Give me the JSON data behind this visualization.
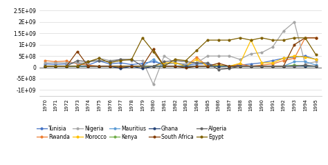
{
  "years": [
    1970,
    1971,
    1972,
    1973,
    1974,
    1975,
    1976,
    1977,
    1978,
    1979,
    1980,
    1981,
    1982,
    1983,
    1984,
    1985,
    1986,
    1987,
    1988,
    1989,
    1990,
    1991,
    1992,
    1993,
    1994,
    1995
  ],
  "series": {
    "Tunisia": [
      150000000.0,
      130000000.0,
      150000000.0,
      200000000.0,
      100000000.0,
      280000000.0,
      150000000.0,
      200000000.0,
      120000000.0,
      180000000.0,
      250000000.0,
      150000000.0,
      180000000.0,
      100000000.0,
      150000000.0,
      150000000.0,
      80000000.0,
      50000000.0,
      100000000.0,
      150000000.0,
      200000000.0,
      300000000.0,
      400000000.0,
      450000000.0,
      500000000.0,
      350000000.0
    ],
    "Rwanda": [
      300000000.0,
      250000000.0,
      280000000.0,
      150000000.0,
      100000000.0,
      50000000.0,
      50000000.0,
      -10000000.0,
      50000000.0,
      50000000.0,
      50000000.0,
      50000000.0,
      50000000.0,
      50000000.0,
      450000000.0,
      50000000.0,
      50000000.0,
      50000000.0,
      150000000.0,
      50000000.0,
      100000000.0,
      150000000.0,
      300000000.0,
      400000000.0,
      1300000000.0,
      1300000000.0
    ],
    "Nigeria": [
      200000000.0,
      200000000.0,
      200000000.0,
      200000000.0,
      200000000.0,
      400000000.0,
      300000000.0,
      350000000.0,
      300000000.0,
      300000000.0,
      -750000000.0,
      500000000.0,
      200000000.0,
      150000000.0,
      200000000.0,
      500000000.0,
      500000000.0,
      500000000.0,
      350000000.0,
      600000000.0,
      650000000.0,
      900000000.0,
      1600000000.0,
      2000000000.0,
      150000000.0,
      250000000.0
    ],
    "Morocco": [
      50000000.0,
      50000000.0,
      50000000.0,
      50000000.0,
      50000000.0,
      50000000.0,
      50000000.0,
      50000000.0,
      50000000.0,
      50000000.0,
      50000000.0,
      200000000.0,
      200000000.0,
      50000000.0,
      350000000.0,
      50000000.0,
      100000000.0,
      50000000.0,
      180000000.0,
      1200000000.0,
      200000000.0,
      200000000.0,
      400000000.0,
      500000000.0,
      450000000.0,
      350000000.0
    ],
    "Mauritius": [
      50000000.0,
      50000000.0,
      50000000.0,
      50000000.0,
      50000000.0,
      50000000.0,
      50000000.0,
      50000000.0,
      50000000.0,
      50000000.0,
      350000000.0,
      50000000.0,
      50000000.0,
      50000000.0,
      50000000.0,
      50000000.0,
      50000000.0,
      50000000.0,
      50000000.0,
      50000000.0,
      50000000.0,
      50000000.0,
      50000000.0,
      250000000.0,
      250000000.0,
      100000000.0
    ],
    "Kenya": [
      50000000.0,
      50000000.0,
      50000000.0,
      50000000.0,
      50000000.0,
      50000000.0,
      50000000.0,
      50000000.0,
      50000000.0,
      50000000.0,
      50000000.0,
      50000000.0,
      50000000.0,
      50000000.0,
      50000000.0,
      50000000.0,
      50000000.0,
      50000000.0,
      50000000.0,
      50000000.0,
      50000000.0,
      50000000.0,
      50000000.0,
      100000000.0,
      50000000.0,
      50000000.0
    ],
    "Ghana": [
      50000000.0,
      50000000.0,
      50000000.0,
      50000000.0,
      50000000.0,
      50000000.0,
      50000000.0,
      -50000000.0,
      50000000.0,
      -50000000.0,
      50000000.0,
      50000000.0,
      50000000.0,
      50000000.0,
      50000000.0,
      50000000.0,
      50000000.0,
      50000000.0,
      50000000.0,
      50000000.0,
      50000000.0,
      50000000.0,
      50000000.0,
      50000000.0,
      50000000.0,
      50000000.0
    ],
    "South Africa": [
      50000000.0,
      50000000.0,
      50000000.0,
      700000000.0,
      50000000.0,
      50000000.0,
      50000000.0,
      50000000.0,
      50000000.0,
      50000000.0,
      800000000.0,
      50000000.0,
      50000000.0,
      -20000000.0,
      50000000.0,
      50000000.0,
      180000000.0,
      50000000.0,
      50000000.0,
      50000000.0,
      50000000.0,
      50000000.0,
      50000000.0,
      1000000000.0,
      1300000000.0,
      1300000000.0
    ],
    "Algeria": [
      50000000.0,
      50000000.0,
      50000000.0,
      300000000.0,
      250000000.0,
      300000000.0,
      250000000.0,
      350000000.0,
      350000000.0,
      50000000.0,
      50000000.0,
      250000000.0,
      300000000.0,
      250000000.0,
      200000000.0,
      200000000.0,
      -100000000.0,
      -50000000.0,
      50000000.0,
      50000000.0,
      50000000.0,
      50000000.0,
      50000000.0,
      50000000.0,
      100000000.0,
      50000000.0
    ],
    "Egypt": [
      50000000.0,
      50000000.0,
      50000000.0,
      50000000.0,
      250000000.0,
      400000000.0,
      200000000.0,
      300000000.0,
      350000000.0,
      1300000000.0,
      700000000.0,
      50000000.0,
      350000000.0,
      300000000.0,
      750000000.0,
      1200000000.0,
      1200000000.0,
      1200000000.0,
      1300000000.0,
      1200000000.0,
      1300000000.0,
      1200000000.0,
      1200000000.0,
      1300000000.0,
      1300000000.0,
      550000000.0
    ]
  },
  "colors": {
    "Tunisia": "#4472c4",
    "Rwanda": "#ed7d31",
    "Nigeria": "#a5a5a5",
    "Morocco": "#ffc000",
    "Mauritius": "#5b9bd5",
    "Kenya": "#70ad47",
    "Ghana": "#264478",
    "South Africa": "#843c04",
    "Algeria": "#636363",
    "Egypt": "#7f6000"
  },
  "legend_order": [
    "Tunisia",
    "Rwanda",
    "Nigeria",
    "Morocco",
    "Mauritius",
    "Kenya",
    "Ghana",
    "South Africa",
    "Algeria",
    "Egypt"
  ],
  "ylim": [
    -1250000000.0,
    2750000000.0
  ],
  "yticks": [
    -1000000000.0,
    -500000000.0,
    0,
    500000000.0,
    1000000000.0,
    1500000000.0,
    2000000000.0,
    2500000000.0
  ],
  "ytick_labels": [
    "-1E+09",
    "-5E+08",
    "0",
    "5E+08",
    "1E+09",
    "1.5E+09",
    "2E+09",
    "2.5E+09"
  ],
  "background_color": "#ffffff",
  "grid_color": "#d9d9d9"
}
